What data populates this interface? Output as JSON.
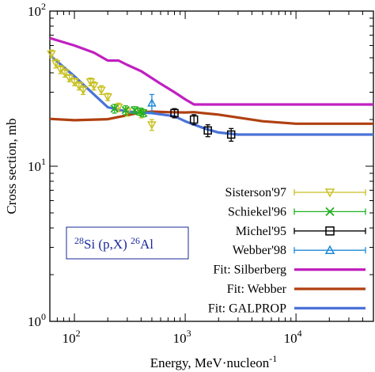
{
  "chart_data": {
    "type": "line",
    "xlabel": "Energy, MeV·nucleon",
    "xlabel_sup": "-1",
    "ylabel": "Cross section, mb",
    "x_scale": "log",
    "y_scale": "log",
    "xlim": [
      60,
      50000
    ],
    "ylim": [
      1,
      100
    ],
    "x_ticks": [
      {
        "value": 100,
        "base": "10",
        "exp": "2"
      },
      {
        "value": 1000,
        "base": "10",
        "exp": "3"
      },
      {
        "value": 10000,
        "base": "10",
        "exp": "4"
      }
    ],
    "y_ticks": [
      {
        "value": 1,
        "base": "10",
        "exp": "0"
      },
      {
        "value": 10,
        "base": "10",
        "exp": "1"
      },
      {
        "value": 100,
        "base": "10",
        "exp": "2"
      }
    ],
    "grid": false,
    "legend_position": "bottom-right",
    "annotation": {
      "pre_sup": "28",
      "mid": "Si (p,X) ",
      "post_sup": "26",
      "post": "Al",
      "position": "left-lower"
    },
    "fits": [
      {
        "name": "Fit: Silberberg",
        "color": "#c020c0",
        "x": [
          60,
          100,
          150,
          200,
          250,
          300,
          400,
          500,
          600,
          800,
          1000,
          1200,
          2000,
          5000,
          10000,
          50000
        ],
        "y": [
          67,
          60,
          54,
          48,
          48,
          45,
          41,
          37,
          34,
          30,
          27,
          25,
          25,
          25,
          25,
          25
        ]
      },
      {
        "name": "Fit: Webber",
        "color": "#b04010",
        "x": [
          60,
          100,
          200,
          300,
          400,
          500,
          700,
          1000,
          1200,
          2000,
          5000,
          10000,
          50000
        ],
        "y": [
          20.2,
          19.8,
          20.1,
          21.3,
          22.2,
          22.5,
          22.3,
          22.2,
          22.3,
          21.5,
          19.5,
          18.8,
          18.8
        ]
      },
      {
        "name": "Fit: GALPROP",
        "color": "#4a72d8",
        "x": [
          60,
          100,
          200,
          300,
          500,
          800,
          1000,
          1500,
          2000,
          3000,
          5000,
          10000,
          50000
        ],
        "y": [
          52,
          38,
          24,
          22.5,
          22,
          21,
          19.5,
          17.5,
          16.5,
          16,
          16,
          16,
          16
        ]
      }
    ],
    "series": [
      {
        "name": "Sisterson'97",
        "color": "#c8c020",
        "marker": "triangle-down",
        "points": [
          [
            62,
            53,
            3
          ],
          [
            68,
            46,
            3
          ],
          [
            75,
            42,
            2.5
          ],
          [
            82,
            40,
            2.5
          ],
          [
            90,
            37,
            2
          ],
          [
            100,
            35,
            2
          ],
          [
            110,
            33,
            2
          ],
          [
            120,
            31,
            2
          ],
          [
            140,
            35,
            2
          ],
          [
            150,
            33,
            2
          ],
          [
            175,
            31,
            2
          ],
          [
            200,
            28,
            1.5
          ],
          [
            250,
            24,
            1.5
          ],
          [
            300,
            22.5,
            1.5
          ],
          [
            400,
            22,
            1.5
          ],
          [
            500,
            18.5,
            1.5
          ]
        ]
      },
      {
        "name": "Schiekel'96",
        "color": "#20b020",
        "marker": "x",
        "points": [
          [
            230,
            23.5,
            1.5
          ],
          [
            290,
            23,
            1.5
          ],
          [
            350,
            23,
            1.2
          ],
          [
            390,
            22.5,
            1.2
          ],
          [
            420,
            22,
            1.2
          ]
        ]
      },
      {
        "name": "Michel'95",
        "color": "#000000",
        "marker": "square",
        "points": [
          [
            800,
            22,
            1.5
          ],
          [
            1200,
            20,
            1.5
          ],
          [
            1600,
            17,
            1.5
          ],
          [
            2600,
            16,
            1.5
          ]
        ]
      },
      {
        "name": "Webber'98",
        "color": "#1e88d8",
        "marker": "triangle-up",
        "points": [
          [
            500,
            25.5,
            3.5
          ]
        ]
      }
    ]
  }
}
